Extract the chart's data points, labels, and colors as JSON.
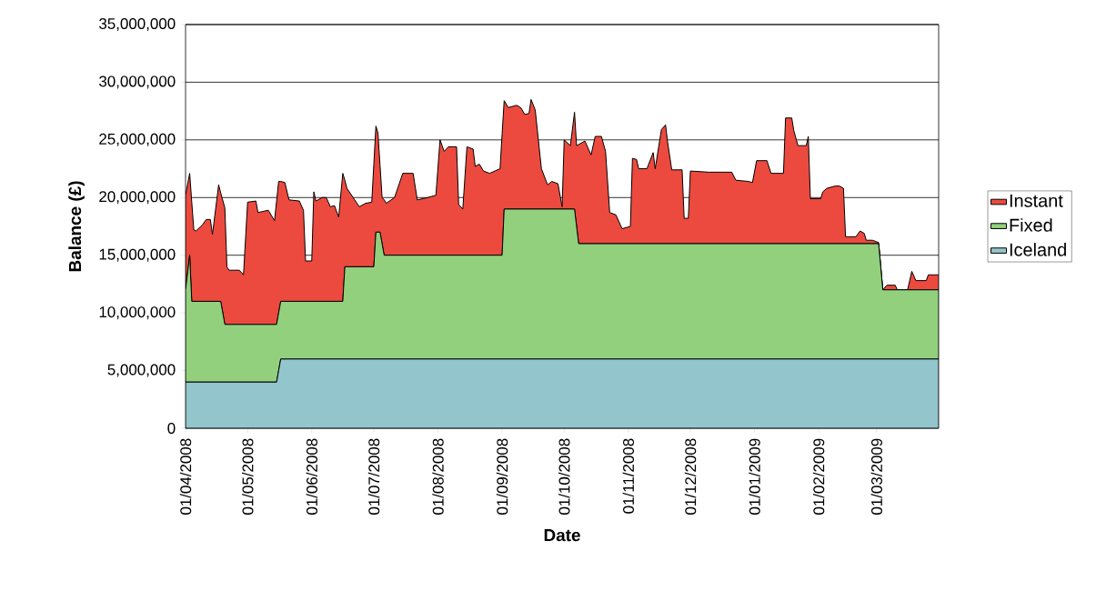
{
  "chart_data": {
    "type": "area",
    "stacked": true,
    "xlabel": "Date",
    "ylabel": "Balance (£)",
    "xlim": [
      "2008-04-01",
      "2009-03-31"
    ],
    "xticks": [
      {
        "value": "2008-04-01",
        "label": "01/04/2008"
      },
      {
        "value": "2008-05-01",
        "label": "01/05/2008"
      },
      {
        "value": "2008-06-01",
        "label": "01/06/2008"
      },
      {
        "value": "2008-07-01",
        "label": "01/07/2008"
      },
      {
        "value": "2008-08-01",
        "label": "01/08/2008"
      },
      {
        "value": "2008-09-01",
        "label": "01/09/2008"
      },
      {
        "value": "2008-10-01",
        "label": "01/10/2008"
      },
      {
        "value": "2008-11-01",
        "label": "01/11/2008"
      },
      {
        "value": "2008-12-01",
        "label": "01/12/2008"
      },
      {
        "value": "2009-01-01",
        "label": "01/01/2009"
      },
      {
        "value": "2009-02-01",
        "label": "01/02/2009"
      },
      {
        "value": "2009-03-01",
        "label": "01/03/2009"
      }
    ],
    "ylim": [
      0,
      35000000
    ],
    "yticks": [
      0,
      {
        "value": 5000000,
        "label": "5,000,000"
      },
      {
        "value": 10000000,
        "label": "10,000,000"
      },
      {
        "value": 15000000,
        "label": "15,000,000"
      },
      {
        "value": 20000000,
        "label": "20,000,000"
      },
      {
        "value": 25000000,
        "label": "25,000,000"
      },
      {
        "value": 30000000,
        "label": "30,000,000"
      },
      {
        "value": 35000000,
        "label": "35,000,000"
      }
    ],
    "grid": "y",
    "legend": "right",
    "x": [
      "2008-04-01",
      "2008-04-03",
      "2008-04-04",
      "2008-04-05",
      "2008-04-06",
      "2008-04-09",
      "2008-04-11",
      "2008-04-13",
      "2008-04-14",
      "2008-04-17",
      "2008-04-18",
      "2008-04-20",
      "2008-04-21",
      "2008-04-22",
      "2008-04-27",
      "2008-04-29",
      "2008-05-01",
      "2008-05-05",
      "2008-05-06",
      "2008-05-11",
      "2008-05-14",
      "2008-05-15",
      "2008-05-16",
      "2008-05-17",
      "2008-05-19",
      "2008-05-21",
      "2008-05-26",
      "2008-05-28",
      "2008-05-29",
      "2008-06-01",
      "2008-06-02",
      "2008-06-03",
      "2008-06-06",
      "2008-06-08",
      "2008-06-10",
      "2008-06-12",
      "2008-06-14",
      "2008-06-16",
      "2008-06-17",
      "2008-06-18",
      "2008-06-24",
      "2008-06-27",
      "2008-06-30",
      "2008-07-01",
      "2008-07-02",
      "2008-07-03",
      "2008-07-04",
      "2008-07-05",
      "2008-07-06",
      "2008-07-07",
      "2008-07-11",
      "2008-07-15",
      "2008-07-20",
      "2008-07-22",
      "2008-07-27",
      "2008-07-31",
      "2008-08-02",
      "2008-08-04",
      "2008-08-06",
      "2008-08-10",
      "2008-08-11",
      "2008-08-13",
      "2008-08-15",
      "2008-08-18",
      "2008-08-19",
      "2008-08-21",
      "2008-08-23",
      "2008-08-26",
      "2008-08-31",
      "2008-09-01",
      "2008-09-02",
      "2008-09-04",
      "2008-09-08",
      "2008-09-10",
      "2008-09-12",
      "2008-09-14",
      "2008-09-15",
      "2008-09-17",
      "2008-09-20",
      "2008-09-23",
      "2008-09-25",
      "2008-09-28",
      "2008-09-30",
      "2008-10-01",
      "2008-10-04",
      "2008-10-06",
      "2008-10-07",
      "2008-10-08",
      "2008-10-11",
      "2008-10-14",
      "2008-10-16",
      "2008-10-19",
      "2008-10-21",
      "2008-10-23",
      "2008-10-26",
      "2008-10-29",
      "2008-11-02",
      "2008-11-03",
      "2008-11-05",
      "2008-11-06",
      "2008-11-10",
      "2008-11-13",
      "2008-11-14",
      "2008-11-17",
      "2008-11-19",
      "2008-11-20",
      "2008-11-22",
      "2008-11-27",
      "2008-11-28",
      "2008-11-30",
      "2008-12-01",
      "2008-12-10",
      "2008-12-21",
      "2008-12-23",
      "2008-12-29",
      "2008-12-31",
      "2009-01-02",
      "2009-01-07",
      "2009-01-09",
      "2009-01-15",
      "2009-01-16",
      "2009-01-19",
      "2009-01-20",
      "2009-01-22",
      "2009-01-26",
      "2009-01-27",
      "2009-01-28",
      "2009-02-02",
      "2009-02-03",
      "2009-02-05",
      "2009-02-09",
      "2009-02-11",
      "2009-02-13",
      "2009-02-14",
      "2009-02-19",
      "2009-02-21",
      "2009-02-23",
      "2009-02-24",
      "2009-02-27",
      "2009-03-02",
      "2009-03-04",
      "2009-03-06",
      "2009-03-10",
      "2009-03-11",
      "2009-03-16",
      "2009-03-18",
      "2009-03-20",
      "2009-03-25",
      "2009-03-26",
      "2009-03-31"
    ],
    "series": [
      {
        "name": "Iceland",
        "color": "#93c6cc",
        "values": [
          4000000,
          4000000,
          4000000,
          4000000,
          4000000,
          4000000,
          4000000,
          4000000,
          4000000,
          4000000,
          4000000,
          4000000,
          4000000,
          4000000,
          4000000,
          4000000,
          4000000,
          4000000,
          4000000,
          4000000,
          4000000,
          4000000,
          5000000,
          6000000,
          6000000,
          6000000,
          6000000,
          6000000,
          6000000,
          6000000,
          6000000,
          6000000,
          6000000,
          6000000,
          6000000,
          6000000,
          6000000,
          6000000,
          6000000,
          6000000,
          6000000,
          6000000,
          6000000,
          6000000,
          6000000,
          6000000,
          6000000,
          6000000,
          6000000,
          6000000,
          6000000,
          6000000,
          6000000,
          6000000,
          6000000,
          6000000,
          6000000,
          6000000,
          6000000,
          6000000,
          6000000,
          6000000,
          6000000,
          6000000,
          6000000,
          6000000,
          6000000,
          6000000,
          6000000,
          6000000,
          6000000,
          6000000,
          6000000,
          6000000,
          6000000,
          6000000,
          6000000,
          6000000,
          6000000,
          6000000,
          6000000,
          6000000,
          6000000,
          6000000,
          6000000,
          6000000,
          6000000,
          6000000,
          6000000,
          6000000,
          6000000,
          6000000,
          6000000,
          6000000,
          6000000,
          6000000,
          6000000,
          6000000,
          6000000,
          6000000,
          6000000,
          6000000,
          6000000,
          6000000,
          6000000,
          6000000,
          6000000,
          6000000,
          6000000,
          6000000,
          6000000,
          6000000,
          6000000,
          6000000,
          6000000,
          6000000,
          6000000,
          6000000,
          6000000,
          6000000,
          6000000,
          6000000,
          6000000,
          6000000,
          6000000,
          6000000,
          6000000,
          6000000,
          6000000,
          6000000,
          6000000,
          6000000,
          6000000,
          6000000,
          6000000,
          6000000,
          6000000,
          6000000,
          6000000,
          6000000,
          6000000,
          6000000,
          6000000,
          6000000,
          6000000,
          6000000,
          6000000,
          6000000,
          6000000,
          6000000
        ]
      },
      {
        "name": "Fixed",
        "color": "#92d07e",
        "values": [
          8000000,
          11000000,
          7000000,
          7000000,
          7000000,
          7000000,
          7000000,
          7000000,
          7000000,
          7000000,
          7000000,
          5000000,
          5000000,
          5000000,
          5000000,
          5000000,
          5000000,
          5000000,
          5000000,
          5000000,
          5000000,
          5000000,
          5000000,
          5000000,
          5000000,
          5000000,
          5000000,
          5000000,
          5000000,
          5000000,
          5000000,
          5000000,
          5000000,
          5000000,
          5000000,
          5000000,
          5000000,
          5000000,
          8000000,
          8000000,
          8000000,
          8000000,
          8000000,
          8000000,
          11000000,
          11000000,
          11000000,
          10000000,
          9000000,
          9000000,
          9000000,
          9000000,
          9000000,
          9000000,
          9000000,
          9000000,
          9000000,
          9000000,
          9000000,
          9000000,
          9000000,
          9000000,
          9000000,
          9000000,
          9000000,
          9000000,
          9000000,
          9000000,
          9000000,
          9000000,
          13000000,
          13000000,
          13000000,
          13000000,
          13000000,
          13000000,
          13000000,
          13000000,
          13000000,
          13000000,
          13000000,
          13000000,
          13000000,
          13000000,
          13000000,
          13000000,
          11500000,
          10000000,
          10000000,
          10000000,
          10000000,
          10000000,
          10000000,
          10000000,
          10000000,
          10000000,
          10000000,
          10000000,
          10000000,
          10000000,
          10000000,
          10000000,
          10000000,
          10000000,
          10000000,
          10000000,
          10000000,
          10000000,
          10000000,
          10000000,
          10000000,
          10000000,
          10000000,
          10000000,
          10000000,
          10000000,
          10000000,
          10000000,
          10000000,
          10000000,
          10000000,
          10000000,
          10000000,
          10000000,
          10000000,
          10000000,
          10000000,
          10000000,
          10000000,
          10000000,
          10000000,
          10000000,
          10000000,
          10000000,
          10000000,
          10000000,
          10000000,
          10000000,
          10000000,
          10000000,
          6000000,
          6000000,
          6000000,
          6000000,
          6000000,
          6000000,
          6000000,
          6000000,
          6000000,
          6000000
        ]
      },
      {
        "name": "Instant",
        "color": "#ec4a3e",
        "values": [
          8200000,
          7100000,
          8600000,
          6200000,
          6100000,
          6600000,
          7100000,
          7100000,
          5800000,
          10100000,
          9400000,
          10100000,
          5000000,
          4700000,
          4700000,
          4300000,
          10600000,
          10700000,
          9700000,
          9900000,
          9000000,
          10700000,
          11400000,
          10400000,
          10300000,
          8800000,
          8700000,
          7900000,
          3500000,
          3500000,
          9500000,
          8700000,
          9000000,
          9000000,
          8200000,
          8300000,
          7300000,
          11100000,
          7500000,
          6800000,
          5200000,
          5500000,
          5600000,
          8900000,
          9200000,
          8600000,
          5800000,
          4000000,
          4800000,
          4500000,
          5000000,
          7100000,
          7100000,
          4800000,
          5000000,
          5200000,
          10000000,
          9000000,
          9400000,
          9400000,
          4400000,
          4000000,
          9400000,
          9200000,
          7700000,
          7900000,
          7300000,
          7100000,
          7500000,
          10500000,
          9400000,
          8800000,
          9000000,
          8800000,
          8200000,
          8300000,
          9500000,
          8600000,
          3500000,
          2100000,
          2400000,
          2200000,
          200000,
          6000000,
          5500000,
          8400000,
          7000000,
          8600000,
          8900000,
          7700000,
          9300000,
          9300000,
          8000000,
          2700000,
          2500000,
          1300000,
          1500000,
          7400000,
          7300000,
          6500000,
          6500000,
          7900000,
          6500000,
          9900000,
          10300000,
          8800000,
          6400000,
          6400000,
          2200000,
          2200000,
          6300000,
          6200000,
          6200000,
          5500000,
          5400000,
          5300000,
          7200000,
          7200000,
          6100000,
          6100000,
          10900000,
          10900000,
          9800000,
          8500000,
          8500000,
          9300000,
          3900000,
          3900000,
          4500000,
          4800000,
          5000000,
          5000000,
          4800000,
          600000,
          600000,
          1100000,
          900000,
          300000,
          300000,
          100000,
          0,
          400000,
          400000,
          0,
          0,
          1600000,
          800000,
          800000,
          1300000,
          1300000
        ]
      }
    ]
  }
}
